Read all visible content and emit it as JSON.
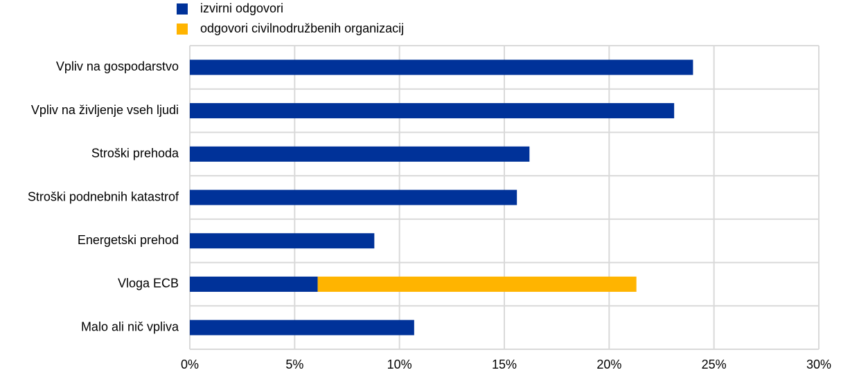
{
  "chart_data": {
    "type": "stacked_barh",
    "categories": [
      "Vpliv na gospodarstvo",
      "Vpliv na življenje vseh ljudi",
      "Stroški prehoda",
      "Stroški podnebnih katastrof",
      "Energetski prehod",
      "Vloga ECB",
      "Malo ali nič vpliva"
    ],
    "series": [
      {
        "name": "izvirni odgovori",
        "color": "#003299",
        "values": [
          24.0,
          23.1,
          16.2,
          15.6,
          8.8,
          6.1,
          10.7
        ]
      },
      {
        "name": "odgovori civilnodružbenih organizacij",
        "color": "#ffb400",
        "values": [
          null,
          null,
          null,
          null,
          null,
          15.2,
          null
        ]
      }
    ],
    "xlim": [
      0,
      30
    ],
    "xticks": [
      {
        "value": 0,
        "label": "0%"
      },
      {
        "value": 5,
        "label": "5%"
      },
      {
        "value": 10,
        "label": "10%"
      },
      {
        "value": 15,
        "label": "15%"
      },
      {
        "value": 20,
        "label": "20%"
      },
      {
        "value": 25,
        "label": "25%"
      },
      {
        "value": 30,
        "label": "30%"
      }
    ],
    "grid": true
  }
}
